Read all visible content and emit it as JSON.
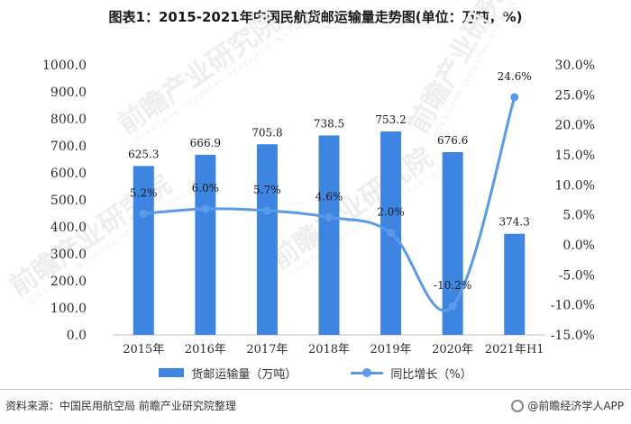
{
  "chart_data": {
    "type": "bar",
    "title": "图表1：2015-2021年中国民航货邮运输量走势图(单位：万吨，%)",
    "categories": [
      "2015年",
      "2016年",
      "2017年",
      "2018年",
      "2019年",
      "2020年",
      "2021年H1"
    ],
    "series": [
      {
        "name": "货邮运输量（万吨）",
        "type": "bar",
        "axis": "left",
        "color": "#3d85e0",
        "values": [
          625.3,
          666.9,
          705.8,
          738.5,
          753.2,
          676.6,
          374.3
        ],
        "labels": [
          "625.3",
          "666.9",
          "705.8",
          "738.5",
          "753.2",
          "676.6",
          "374.3"
        ]
      },
      {
        "name": "同比增长（%）",
        "type": "line",
        "axis": "right",
        "color": "#5a9ae6",
        "values": [
          5.2,
          6.0,
          5.7,
          4.6,
          2.0,
          -10.2,
          24.6
        ],
        "labels": [
          "5.2%",
          "6.0%",
          "5.7%",
          "4.6%",
          "2.0%",
          "-10.2%",
          "24.6%"
        ]
      }
    ],
    "ylim_left": [
      0,
      1000
    ],
    "yticks_left": [
      "0.0",
      "100.0",
      "200.0",
      "300.0",
      "400.0",
      "500.0",
      "600.0",
      "700.0",
      "800.0",
      "900.0",
      "1000.0"
    ],
    "ylim_right": [
      -15,
      30
    ],
    "yticks_right": [
      "-15.0%",
      "-10.0%",
      "-5.0%",
      "0.0%",
      "5.0%",
      "10.0%",
      "15.0%",
      "20.0%",
      "25.0%",
      "30.0%"
    ],
    "grid": false,
    "legend": "bottom"
  },
  "footer": {
    "source": "资料来源：中国民用航空局 前瞻产业研究院整理",
    "brand": "@前瞻经济学人APP"
  },
  "watermark": {
    "text": "前瞻产业研究院",
    "subtext": "QIANZHAN INDUSTRY RESEARCH INSTITUTE"
  }
}
